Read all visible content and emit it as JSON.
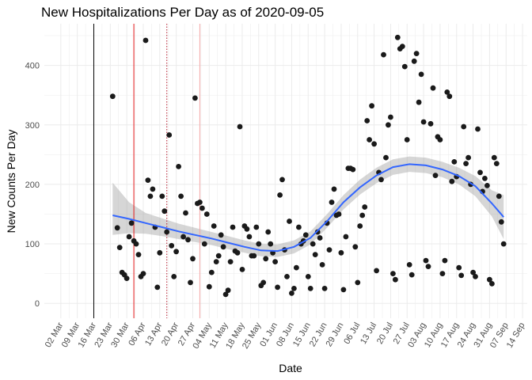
{
  "chart_data": {
    "type": "scatter",
    "title": "New Hospitalizations Per Day as of 2020-09-05",
    "xlabel": "Date",
    "ylabel": "New Counts Per Day",
    "x_start": "2020-02-24",
    "xlim": [
      "2020-02-24",
      "2020-09-16"
    ],
    "ylim": [
      -25,
      470
    ],
    "x_ticks": [
      {
        "date": "2020-03-02",
        "label": "02 Mar"
      },
      {
        "date": "2020-03-09",
        "label": "09 Mar"
      },
      {
        "date": "2020-03-16",
        "label": "16 Mar"
      },
      {
        "date": "2020-03-23",
        "label": "23 Mar"
      },
      {
        "date": "2020-03-30",
        "label": "30 Mar"
      },
      {
        "date": "2020-04-06",
        "label": "06 Apr"
      },
      {
        "date": "2020-04-13",
        "label": "13 Apr"
      },
      {
        "date": "2020-04-20",
        "label": "20 Apr"
      },
      {
        "date": "2020-04-27",
        "label": "27 Apr"
      },
      {
        "date": "2020-05-04",
        "label": "04 May"
      },
      {
        "date": "2020-05-11",
        "label": "11 May"
      },
      {
        "date": "2020-05-18",
        "label": "18 May"
      },
      {
        "date": "2020-05-25",
        "label": "25 May"
      },
      {
        "date": "2020-06-01",
        "label": "01 Jun"
      },
      {
        "date": "2020-06-08",
        "label": "08 Jun"
      },
      {
        "date": "2020-06-15",
        "label": "15 Jun"
      },
      {
        "date": "2020-06-22",
        "label": "22 Jun"
      },
      {
        "date": "2020-06-29",
        "label": "29 Jun"
      },
      {
        "date": "2020-07-06",
        "label": "06 Jul"
      },
      {
        "date": "2020-07-13",
        "label": "13 Jul"
      },
      {
        "date": "2020-07-20",
        "label": "20 Jul"
      },
      {
        "date": "2020-07-27",
        "label": "27 Jul"
      },
      {
        "date": "2020-08-03",
        "label": "03 Aug"
      },
      {
        "date": "2020-08-10",
        "label": "10 Aug"
      },
      {
        "date": "2020-08-17",
        "label": "17 Aug"
      },
      {
        "date": "2020-08-24",
        "label": "24 Aug"
      },
      {
        "date": "2020-08-31",
        "label": "31 Aug"
      },
      {
        "date": "2020-09-07",
        "label": "07 Sep"
      },
      {
        "date": "2020-09-14",
        "label": "14 Sep"
      }
    ],
    "y_ticks": [
      0,
      100,
      200,
      300,
      400
    ],
    "grid": true,
    "vlines": [
      {
        "date": "2020-03-16",
        "color": "#000000",
        "style": "solid"
      },
      {
        "date": "2020-04-02",
        "color": "#e41a1c",
        "style": "solid"
      },
      {
        "date": "2020-04-16",
        "color": "#b2182b",
        "style": "dotted"
      },
      {
        "date": "2020-04-30",
        "color": "#f4a6a6",
        "style": "solid"
      }
    ],
    "points": [
      [
        "2020-03-26",
        127
      ],
      [
        "2020-03-27",
        94
      ],
      [
        "2020-03-28",
        52
      ],
      [
        "2020-03-29",
        48
      ],
      [
        "2020-03-30",
        42
      ],
      [
        "2020-03-31",
        112
      ],
      [
        "2020-04-01",
        135
      ],
      [
        "2020-04-02",
        105
      ],
      [
        "2020-04-03",
        100
      ],
      [
        "2020-04-04",
        82
      ],
      [
        "2020-04-05",
        45
      ],
      [
        "2020-04-06",
        50
      ],
      [
        "2020-04-07",
        442
      ],
      [
        "2020-04-08",
        207
      ],
      [
        "2020-04-09",
        180
      ],
      [
        "2020-04-10",
        192
      ],
      [
        "2020-04-11",
        128
      ],
      [
        "2020-04-12",
        27
      ],
      [
        "2020-04-13",
        85
      ],
      [
        "2020-04-14",
        180
      ],
      [
        "2020-04-15",
        155
      ],
      [
        "2020-04-16",
        120
      ],
      [
        "2020-04-17",
        283
      ],
      [
        "2020-04-18",
        97
      ],
      [
        "2020-04-19",
        45
      ],
      [
        "2020-04-20",
        87
      ],
      [
        "2020-04-21",
        230
      ],
      [
        "2020-04-22",
        180
      ],
      [
        "2020-04-23",
        112
      ],
      [
        "2020-04-24",
        152
      ],
      [
        "2020-04-25",
        107
      ],
      [
        "2020-04-26",
        35
      ],
      [
        "2020-04-27",
        75
      ],
      [
        "2020-04-28",
        345
      ],
      [
        "2020-04-29",
        168
      ],
      [
        "2020-04-30",
        170
      ],
      [
        "2020-05-01",
        160
      ],
      [
        "2020-05-02",
        100
      ],
      [
        "2020-05-03",
        150
      ],
      [
        "2020-05-04",
        28
      ],
      [
        "2020-05-05",
        52
      ],
      [
        "2020-05-06",
        130
      ],
      [
        "2020-05-07",
        70
      ],
      [
        "2020-05-08",
        80
      ],
      [
        "2020-05-09",
        115
      ],
      [
        "2020-05-10",
        95
      ],
      [
        "2020-05-11",
        15
      ],
      [
        "2020-05-12",
        22
      ],
      [
        "2020-05-13",
        70
      ],
      [
        "2020-05-14",
        128
      ],
      [
        "2020-05-15",
        88
      ],
      [
        "2020-05-16",
        85
      ],
      [
        "2020-05-17",
        297
      ],
      [
        "2020-05-18",
        57
      ],
      [
        "2020-05-19",
        130
      ],
      [
        "2020-05-20",
        125
      ],
      [
        "2020-05-21",
        112
      ],
      [
        "2020-05-22",
        80
      ],
      [
        "2020-05-23",
        80
      ],
      [
        "2020-05-24",
        128
      ],
      [
        "2020-05-25",
        100
      ],
      [
        "2020-05-26",
        30
      ],
      [
        "2020-05-27",
        35
      ],
      [
        "2020-05-28",
        75
      ],
      [
        "2020-05-29",
        120
      ],
      [
        "2020-05-30",
        100
      ],
      [
        "2020-05-31",
        85
      ],
      [
        "2020-06-01",
        70
      ],
      [
        "2020-06-02",
        27
      ],
      [
        "2020-06-03",
        182
      ],
      [
        "2020-06-04",
        208
      ],
      [
        "2020-06-05",
        90
      ],
      [
        "2020-06-06",
        45
      ],
      [
        "2020-06-07",
        138
      ],
      [
        "2020-06-08",
        17
      ],
      [
        "2020-06-09",
        25
      ],
      [
        "2020-06-10",
        60
      ],
      [
        "2020-06-11",
        128
      ],
      [
        "2020-06-12",
        100
      ],
      [
        "2020-06-13",
        105
      ],
      [
        "2020-06-14",
        115
      ],
      [
        "2020-06-15",
        45
      ],
      [
        "2020-06-16",
        25
      ],
      [
        "2020-06-17",
        100
      ],
      [
        "2020-06-18",
        82
      ],
      [
        "2020-06-19",
        120
      ],
      [
        "2020-06-20",
        110
      ],
      [
        "2020-06-21",
        65
      ],
      [
        "2020-06-22",
        25
      ],
      [
        "2020-06-23",
        135
      ],
      [
        "2020-06-24",
        90
      ],
      [
        "2020-06-25",
        170
      ],
      [
        "2020-06-26",
        192
      ],
      [
        "2020-06-27",
        148
      ],
      [
        "2020-06-28",
        150
      ],
      [
        "2020-06-29",
        85
      ],
      [
        "2020-06-30",
        23
      ],
      [
        "2020-07-01",
        112
      ],
      [
        "2020-07-02",
        227
      ],
      [
        "2020-07-03",
        227
      ],
      [
        "2020-07-04",
        225
      ],
      [
        "2020-07-05",
        95
      ],
      [
        "2020-07-06",
        35
      ],
      [
        "2020-07-07",
        130
      ],
      [
        "2020-07-08",
        148
      ],
      [
        "2020-07-09",
        162
      ],
      [
        "2020-07-10",
        307
      ],
      [
        "2020-07-11",
        275
      ],
      [
        "2020-07-12",
        332
      ],
      [
        "2020-07-13",
        268
      ],
      [
        "2020-07-14",
        55
      ],
      [
        "2020-07-15",
        220
      ],
      [
        "2020-07-16",
        208
      ],
      [
        "2020-07-17",
        418
      ],
      [
        "2020-07-18",
        245
      ],
      [
        "2020-07-19",
        300
      ],
      [
        "2020-07-20",
        313
      ],
      [
        "2020-07-21",
        50
      ],
      [
        "2020-07-22",
        40
      ],
      [
        "2020-07-23",
        447
      ],
      [
        "2020-07-24",
        428
      ],
      [
        "2020-07-25",
        432
      ],
      [
        "2020-07-26",
        398
      ],
      [
        "2020-07-27",
        275
      ],
      [
        "2020-07-28",
        65
      ],
      [
        "2020-07-29",
        48
      ],
      [
        "2020-07-30",
        407
      ],
      [
        "2020-07-31",
        420
      ],
      [
        "2020-08-01",
        338
      ],
      [
        "2020-08-02",
        385
      ],
      [
        "2020-08-03",
        305
      ],
      [
        "2020-08-04",
        72
      ],
      [
        "2020-08-05",
        62
      ],
      [
        "2020-08-06",
        302
      ],
      [
        "2020-08-07",
        362
      ],
      [
        "2020-08-08",
        215
      ],
      [
        "2020-08-09",
        280
      ],
      [
        "2020-08-10",
        275
      ],
      [
        "2020-08-11",
        50
      ],
      [
        "2020-08-12",
        72
      ],
      [
        "2020-08-13",
        355
      ],
      [
        "2020-08-14",
        348
      ],
      [
        "2020-08-15",
        205
      ],
      [
        "2020-08-16",
        238
      ],
      [
        "2020-08-17",
        213
      ],
      [
        "2020-08-18",
        60
      ],
      [
        "2020-08-19",
        47
      ],
      [
        "2020-08-20",
        297
      ],
      [
        "2020-08-21",
        235
      ],
      [
        "2020-08-22",
        245
      ],
      [
        "2020-08-23",
        200
      ],
      [
        "2020-08-24",
        52
      ],
      [
        "2020-08-25",
        45
      ],
      [
        "2020-08-26",
        293
      ],
      [
        "2020-08-27",
        220
      ],
      [
        "2020-08-28",
        188
      ],
      [
        "2020-08-29",
        210
      ],
      [
        "2020-08-30",
        198
      ],
      [
        "2020-08-31",
        40
      ],
      [
        "2020-09-01",
        33
      ],
      [
        "2020-09-02",
        245
      ],
      [
        "2020-09-03",
        235
      ],
      [
        "2020-09-04",
        180
      ],
      [
        "2020-09-05",
        137
      ],
      [
        "2020-09-06",
        100
      ],
      [
        "2020-03-24",
        348
      ]
    ],
    "smooth_fit": [
      [
        "2020-03-24",
        148,
        115,
        203
      ],
      [
        "2020-03-31",
        142,
        118,
        170
      ],
      [
        "2020-04-07",
        135,
        117,
        152
      ],
      [
        "2020-04-14",
        128,
        113,
        143
      ],
      [
        "2020-04-21",
        121,
        108,
        134
      ],
      [
        "2020-04-28",
        115,
        103,
        127
      ],
      [
        "2020-05-05",
        109,
        98,
        120
      ],
      [
        "2020-05-12",
        102,
        91,
        113
      ],
      [
        "2020-05-19",
        95,
        85,
        106
      ],
      [
        "2020-05-26",
        89,
        79,
        100
      ],
      [
        "2020-06-02",
        88,
        78,
        99
      ],
      [
        "2020-06-09",
        95,
        84,
        106
      ],
      [
        "2020-06-16",
        110,
        99,
        121
      ],
      [
        "2020-06-23",
        138,
        127,
        150
      ],
      [
        "2020-06-30",
        170,
        158,
        182
      ],
      [
        "2020-07-07",
        195,
        183,
        208
      ],
      [
        "2020-07-14",
        215,
        202,
        228
      ],
      [
        "2020-07-21",
        229,
        216,
        242
      ],
      [
        "2020-07-28",
        234,
        221,
        247
      ],
      [
        "2020-08-04",
        232,
        219,
        245
      ],
      [
        "2020-08-11",
        225,
        212,
        238
      ],
      [
        "2020-08-18",
        214,
        200,
        228
      ],
      [
        "2020-08-25",
        197,
        180,
        214
      ],
      [
        "2020-09-01",
        168,
        146,
        190
      ],
      [
        "2020-09-06",
        145,
        108,
        182
      ]
    ],
    "colors": {
      "points": "#1a1a1a",
      "smooth_line": "#3366ff",
      "confidence_band": "#999999"
    }
  }
}
